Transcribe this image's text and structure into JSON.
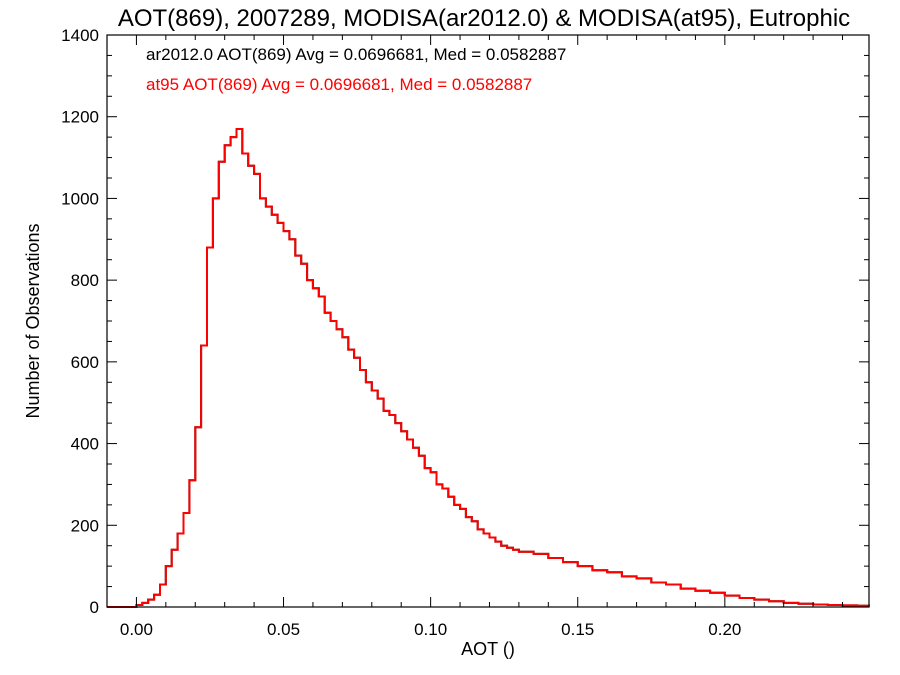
{
  "chart_data": {
    "type": "line",
    "title": "AOT(869), 2007289, MODISA(ar2012.0) & MODISA(at95), Eutrophic",
    "xlabel": "AOT ()",
    "ylabel": "Number of Observations",
    "xlim": [
      -0.01,
      0.249
    ],
    "ylim": [
      0,
      1400
    ],
    "xticks": [
      0.0,
      0.05,
      0.1,
      0.15,
      0.2
    ],
    "xtick_labels": [
      "0.00",
      "0.05",
      "0.10",
      "0.15",
      "0.20"
    ],
    "yticks": [
      0,
      200,
      400,
      600,
      800,
      1000,
      1200,
      1400
    ],
    "ytick_labels": [
      "0",
      "200",
      "400",
      "600",
      "800",
      "1000",
      "1200",
      "1400"
    ],
    "grid": false,
    "annotations": [
      {
        "text": "ar2012.0 AOT(869) Avg = 0.0696681, Med = 0.0582887",
        "color": "#000000"
      },
      {
        "text": "at95 AOT(869) Avg = 0.0696681, Med = 0.0582887",
        "color": "#ff0000"
      }
    ],
    "series": [
      {
        "name": "ar2012.0",
        "color": "#000000",
        "x": [
          -0.01,
          -0.005,
          0.0,
          0.002,
          0.004,
          0.006,
          0.008,
          0.01,
          0.012,
          0.014,
          0.016,
          0.018,
          0.02,
          0.022,
          0.024,
          0.026,
          0.028,
          0.03,
          0.032,
          0.034,
          0.036,
          0.038,
          0.04,
          0.042,
          0.044,
          0.046,
          0.048,
          0.05,
          0.052,
          0.054,
          0.056,
          0.058,
          0.06,
          0.062,
          0.064,
          0.066,
          0.068,
          0.07,
          0.072,
          0.074,
          0.076,
          0.078,
          0.08,
          0.082,
          0.084,
          0.086,
          0.088,
          0.09,
          0.092,
          0.094,
          0.096,
          0.098,
          0.1,
          0.102,
          0.104,
          0.106,
          0.108,
          0.11,
          0.112,
          0.114,
          0.116,
          0.118,
          0.12,
          0.122,
          0.124,
          0.126,
          0.128,
          0.13,
          0.135,
          0.14,
          0.145,
          0.15,
          0.155,
          0.16,
          0.165,
          0.17,
          0.175,
          0.18,
          0.185,
          0.19,
          0.195,
          0.2,
          0.205,
          0.21,
          0.215,
          0.22,
          0.225,
          0.23,
          0.235,
          0.24,
          0.245,
          0.249
        ],
        "y": [
          0,
          0,
          5,
          10,
          18,
          30,
          55,
          100,
          140,
          180,
          230,
          310,
          440,
          640,
          880,
          1000,
          1090,
          1130,
          1150,
          1170,
          1110,
          1080,
          1060,
          1000,
          980,
          960,
          940,
          920,
          900,
          860,
          840,
          800,
          780,
          760,
          720,
          700,
          680,
          660,
          630,
          610,
          580,
          550,
          530,
          510,
          480,
          470,
          450,
          430,
          410,
          390,
          370,
          340,
          330,
          300,
          290,
          270,
          250,
          240,
          220,
          210,
          190,
          180,
          170,
          160,
          150,
          145,
          140,
          135,
          130,
          120,
          110,
          100,
          90,
          85,
          75,
          70,
          60,
          55,
          45,
          40,
          35,
          28,
          22,
          18,
          14,
          10,
          8,
          6,
          5,
          4,
          3,
          2
        ]
      },
      {
        "name": "at95",
        "color": "#ff0000",
        "x": [
          -0.01,
          -0.005,
          0.0,
          0.002,
          0.004,
          0.006,
          0.008,
          0.01,
          0.012,
          0.014,
          0.016,
          0.018,
          0.02,
          0.022,
          0.024,
          0.026,
          0.028,
          0.03,
          0.032,
          0.034,
          0.036,
          0.038,
          0.04,
          0.042,
          0.044,
          0.046,
          0.048,
          0.05,
          0.052,
          0.054,
          0.056,
          0.058,
          0.06,
          0.062,
          0.064,
          0.066,
          0.068,
          0.07,
          0.072,
          0.074,
          0.076,
          0.078,
          0.08,
          0.082,
          0.084,
          0.086,
          0.088,
          0.09,
          0.092,
          0.094,
          0.096,
          0.098,
          0.1,
          0.102,
          0.104,
          0.106,
          0.108,
          0.11,
          0.112,
          0.114,
          0.116,
          0.118,
          0.12,
          0.122,
          0.124,
          0.126,
          0.128,
          0.13,
          0.135,
          0.14,
          0.145,
          0.15,
          0.155,
          0.16,
          0.165,
          0.17,
          0.175,
          0.18,
          0.185,
          0.19,
          0.195,
          0.2,
          0.205,
          0.21,
          0.215,
          0.22,
          0.225,
          0.23,
          0.235,
          0.24,
          0.245,
          0.249
        ],
        "y": [
          0,
          0,
          5,
          10,
          18,
          30,
          55,
          100,
          140,
          180,
          230,
          310,
          440,
          640,
          880,
          1000,
          1090,
          1130,
          1150,
          1170,
          1110,
          1080,
          1060,
          1000,
          980,
          960,
          940,
          920,
          900,
          860,
          840,
          800,
          780,
          760,
          720,
          700,
          680,
          660,
          630,
          610,
          580,
          550,
          530,
          510,
          480,
          470,
          450,
          430,
          410,
          390,
          370,
          340,
          330,
          300,
          290,
          270,
          250,
          240,
          220,
          210,
          190,
          180,
          170,
          160,
          150,
          145,
          140,
          135,
          130,
          120,
          110,
          100,
          90,
          85,
          75,
          70,
          60,
          55,
          45,
          40,
          35,
          28,
          22,
          18,
          14,
          10,
          8,
          6,
          5,
          4,
          3,
          2
        ]
      }
    ]
  }
}
